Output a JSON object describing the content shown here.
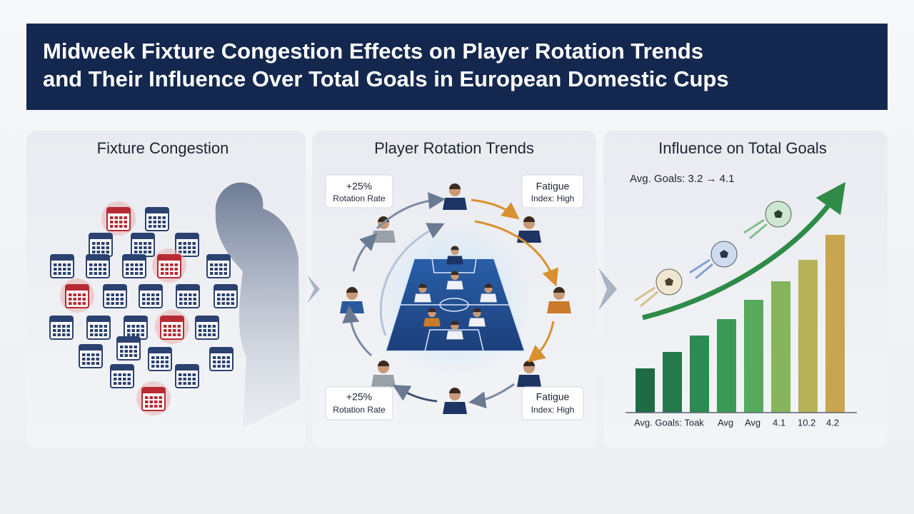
{
  "header": {
    "title_lines": [
      "Midweek Fixture Congestion Effects on Player Rotation Trends",
      "and Their Influence Over Total Goals in European Domestic Cups"
    ]
  },
  "panels": [
    {
      "title": "Fixture Congestion"
    },
    {
      "title": "Player Rotation Trends",
      "callouts": [
        {
          "line1": "+25%",
          "line2": "Rotation Rate"
        },
        {
          "line1": "Fatigue",
          "line2": "Index: High"
        },
        {
          "line1": "+25%",
          "line2": "Rotation Rate"
        },
        {
          "line1": "Fatigue",
          "line2": "Index: High"
        }
      ]
    },
    {
      "title": "Influence on Total Goals",
      "subtitle": "Avg. Goals: 3.2 → 4.1",
      "axis_labels": [
        "Avg. Goals: Toak",
        "Avg",
        "Avg",
        "4.1",
        "10.2",
        "4.2"
      ]
    }
  ]
}
